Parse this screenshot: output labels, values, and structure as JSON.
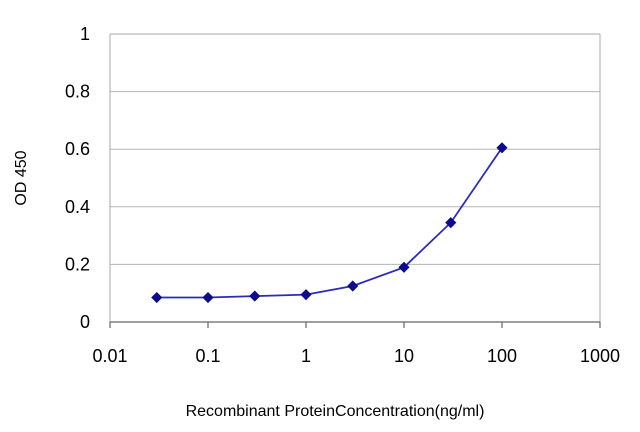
{
  "chart_data": {
    "type": "line",
    "title": "",
    "xlabel": "Recombinant ProteinConcentration(ng/ml)",
    "ylabel": "OD 450",
    "x_scale": "log",
    "xlim": [
      0.01,
      1000
    ],
    "ylim": [
      0,
      1
    ],
    "x_ticks": [
      "0.01",
      "0.1",
      "1",
      "10",
      "100",
      "1000"
    ],
    "y_ticks": [
      "0",
      "0.2",
      "0.4",
      "0.6",
      "0.8",
      "1"
    ],
    "grid": "horizontal",
    "legend": "none",
    "series": [
      {
        "x": [
          0.03,
          0.1,
          0.3,
          1,
          3,
          10,
          30,
          100
        ],
        "y": [
          0.085,
          0.085,
          0.09,
          0.095,
          0.125,
          0.19,
          0.345,
          0.605
        ]
      }
    ]
  },
  "colors": {
    "series": "#2b2bb8",
    "marker": "#0c0c8c",
    "grid": "#b5b5b5",
    "frame": "#a8a8a8",
    "axis": "#666666"
  }
}
